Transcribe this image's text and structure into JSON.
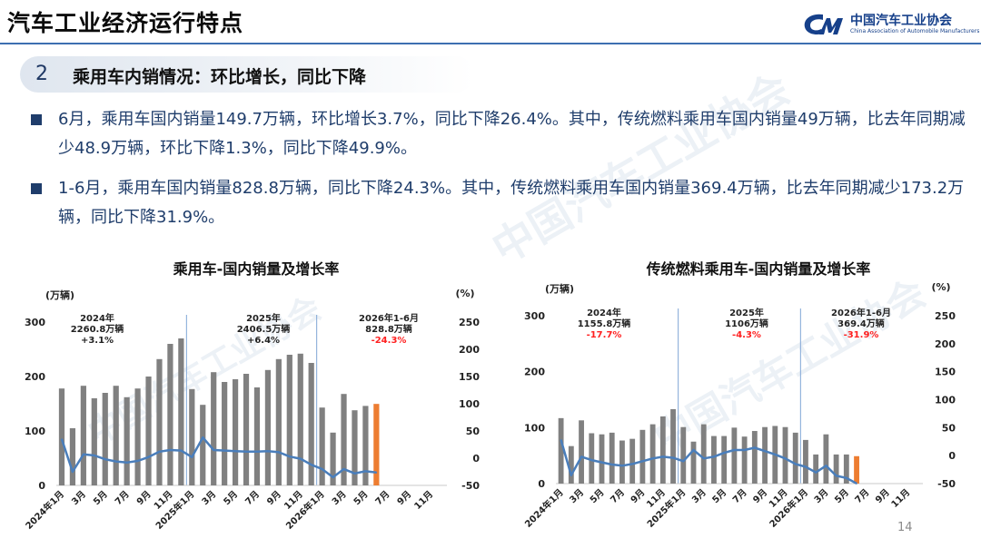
{
  "header": {
    "title": "汽车工业经济运行特点",
    "logo": {
      "name": "中国汽车工业协会",
      "english": "China Association of Automobile Manufacturers"
    }
  },
  "watermark": {
    "text": "中国汽车工业协会",
    "english": "China Association of Automobile Manufacturers"
  },
  "section": {
    "number": "2",
    "title": "乘用车内销情况：环比增长，同比下降"
  },
  "bullets": [
    {
      "text": "6月，乘用车国内销量149.7万辆，环比增长3.7%，同比下降26.4%。其中，传统燃料乘用车国内销量49万辆，比去年同期减少48.9万辆，环比下降1.3%，同比下降49.9%。"
    },
    {
      "text": "1-6月，乘用车国内销量828.8万辆，同比下降24.3%。其中，传统燃料乘用车国内销量369.4万辆，比去年同期减少173.2万辆，同比下降31.9%。"
    }
  ],
  "page_number": "14",
  "chart_data": [
    {
      "type": "bar",
      "title": "乘用车-国内销量及增长率",
      "ylabel": "(万辆)",
      "y2label": "(%)",
      "ylim": [
        0,
        300
      ],
      "yticks": [
        "0",
        "100",
        "200",
        "300"
      ],
      "y2lim": [
        -50,
        250
      ],
      "y2ticks": [
        "-50",
        "0",
        "50",
        "100",
        "150",
        "200",
        "250"
      ],
      "categories": [
        "2024年1月",
        "2",
        "3月",
        "4",
        "5月",
        "6",
        "7月",
        "8",
        "9月",
        "10",
        "11月",
        "12",
        "2025年1月",
        "2",
        "3月",
        "4",
        "5月",
        "6",
        "7月",
        "8",
        "9月",
        "10",
        "11月",
        "12",
        "2026年1月",
        "2",
        "3月",
        "4",
        "5月",
        "6",
        "7月",
        "8",
        "9月",
        "10",
        "11月",
        "12"
      ],
      "xtick_labels": [
        "2024年1月",
        "",
        "3月",
        "",
        "5月",
        "",
        "7月",
        "",
        "9月",
        "",
        "11月",
        "",
        "2025年1月",
        "",
        "3月",
        "",
        "5月",
        "",
        "7月",
        "",
        "9月",
        "",
        "11月",
        "",
        "2026年1月",
        "",
        "3月",
        "",
        "5月",
        "",
        "7月",
        "",
        "9月",
        "",
        "11月",
        ""
      ],
      "series": [
        {
          "kind": "bar",
          "values": [
            178,
            105,
            183,
            160,
            170,
            183,
            162,
            178,
            200,
            232,
            260,
            270,
            177,
            148,
            208,
            190,
            195,
            205,
            180,
            212,
            232,
            240,
            242,
            225,
            143,
            97,
            168,
            138,
            146,
            149.7,
            null,
            null,
            null,
            null,
            null,
            null
          ],
          "color": "#808080",
          "highlight_color": "#ed7d31",
          "highlight_index": 29
        },
        {
          "kind": "line",
          "axis": "y2",
          "values": [
            35,
            -25,
            7,
            5,
            -2,
            -6,
            -8,
            -5,
            2,
            12,
            15,
            14,
            2,
            38,
            15,
            14,
            13,
            12,
            12,
            13,
            11,
            3,
            -1,
            -12,
            -20,
            -35,
            -20,
            -28,
            -24,
            -26.4,
            null,
            null,
            null,
            null,
            null,
            null
          ],
          "color": "#4a7ebb"
        }
      ],
      "separators_after": [
        11,
        23
      ],
      "annotations": [
        {
          "lines": [
            "2024年",
            "2260.8万辆",
            "+3.1%"
          ],
          "last_color": "#222222"
        },
        {
          "lines": [
            "2025年",
            "2406.5万辆",
            "+6.4%"
          ],
          "last_color": "#222222"
        },
        {
          "lines": [
            "2026年1-6月",
            "828.8万辆",
            "-24.3%"
          ],
          "last_color": "#ff2020"
        }
      ]
    },
    {
      "type": "bar",
      "title": "传统燃料乘用车-国内销量及增长率",
      "ylabel": "(万辆)",
      "y2label": "(%)",
      "ylim": [
        0,
        300
      ],
      "yticks": [
        "0",
        "100",
        "200",
        "300"
      ],
      "y2lim": [
        -50,
        250
      ],
      "y2ticks": [
        "-50",
        "0",
        "50",
        "100",
        "150",
        "200",
        "250"
      ],
      "categories": [
        "2024年1月",
        "2",
        "3月",
        "4",
        "5月",
        "6",
        "7月",
        "8",
        "9月",
        "10",
        "11月",
        "12",
        "2025年1月",
        "2",
        "3月",
        "4",
        "5月",
        "6",
        "7月",
        "8",
        "9月",
        "10",
        "11月",
        "12",
        "2026年1月",
        "2",
        "3月",
        "4",
        "5月",
        "6",
        "7月",
        "8",
        "9月",
        "10",
        "11月",
        "12"
      ],
      "xtick_labels": [
        "2024年1月",
        "",
        "3月",
        "",
        "5月",
        "",
        "7月",
        "",
        "9月",
        "",
        "11月",
        "",
        "2025年1月",
        "",
        "3月",
        "",
        "5月",
        "",
        "7月",
        "",
        "9月",
        "",
        "11月",
        "",
        "2026年1月",
        "",
        "3月",
        "",
        "5月",
        "",
        "7月",
        "",
        "9月",
        "",
        "11月",
        ""
      ],
      "series": [
        {
          "kind": "bar",
          "values": [
            117,
            67,
            113,
            90,
            88,
            91,
            77,
            80,
            96,
            106,
            120,
            133,
            101,
            75,
            106,
            85,
            85,
            100,
            84,
            94,
            101,
            103,
            101,
            91,
            78,
            52,
            88,
            52,
            52,
            49,
            null,
            null,
            null,
            null,
            null,
            null
          ],
          "color": "#808080",
          "highlight_color": "#ed7d31",
          "highlight_index": 29
        },
        {
          "kind": "line",
          "axis": "y2",
          "values": [
            28,
            -35,
            -2,
            -8,
            -12,
            -16,
            -18,
            -15,
            -10,
            -5,
            -2,
            -4,
            -10,
            10,
            -5,
            -2,
            5,
            10,
            10,
            14,
            8,
            2,
            -5,
            -15,
            -20,
            -30,
            -18,
            -36,
            -40,
            -49.9,
            null,
            null,
            null,
            null,
            null,
            null
          ],
          "color": "#4a7ebb"
        }
      ],
      "separators_after": [
        11,
        23
      ],
      "annotations": [
        {
          "lines": [
            "2024年",
            "1155.8万辆",
            "-17.7%"
          ],
          "last_color": "#ff2020"
        },
        {
          "lines": [
            "2025年",
            "1106万辆",
            "-4.3%"
          ],
          "last_color": "#ff2020"
        },
        {
          "lines": [
            "2026年1-6月",
            "369.4万辆",
            "-31.9%"
          ],
          "last_color": "#ff2020"
        }
      ]
    }
  ]
}
